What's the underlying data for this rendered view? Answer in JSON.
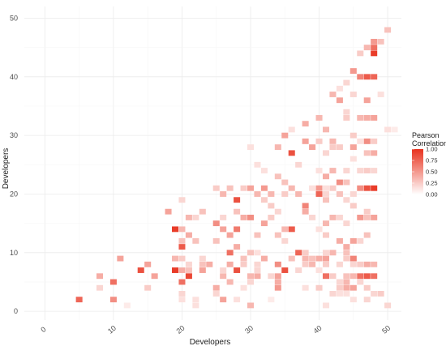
{
  "chart_data": {
    "type": "heatmap",
    "title": "",
    "xlabel": "Developers",
    "ylabel": "Developers",
    "xlim": [
      -3,
      52
    ],
    "ylim": [
      -1.5,
      52
    ],
    "x_ticks": [
      0,
      10,
      20,
      30,
      40,
      50
    ],
    "y_ticks": [
      0,
      10,
      20,
      30,
      40,
      50
    ],
    "grid": true,
    "legend": {
      "title_line1": "Pearson",
      "title_line2": "Correlation",
      "placement": "right",
      "ticks": [
        {
          "value": 1.0,
          "label": "1.00"
        },
        {
          "value": 0.75,
          "label": "0.75"
        },
        {
          "value": 0.5,
          "label": "0.50"
        },
        {
          "value": 0.25,
          "label": "0.25"
        },
        {
          "value": 0.0,
          "label": "0.00"
        }
      ],
      "color_low": "#ffffff",
      "color_high": "#e8321e"
    },
    "cells": [
      [
        5,
        2,
        0.75
      ],
      [
        10,
        5,
        0.7
      ],
      [
        10,
        2,
        0.55
      ],
      [
        11,
        9,
        0.45
      ],
      [
        8,
        6,
        0.4
      ],
      [
        8,
        4,
        0.2
      ],
      [
        12,
        1,
        0.1
      ],
      [
        14,
        7,
        0.85
      ],
      [
        15,
        8,
        0.45
      ],
      [
        16,
        6,
        0.45
      ],
      [
        15,
        4,
        0.25
      ],
      [
        18,
        17,
        0.45
      ],
      [
        19,
        14,
        0.95
      ],
      [
        19,
        7,
        0.95
      ],
      [
        19,
        9,
        0.35
      ],
      [
        20,
        19,
        0.2
      ],
      [
        20,
        14,
        0.35
      ],
      [
        20,
        11,
        0.8
      ],
      [
        20,
        9,
        0.25
      ],
      [
        20,
        7,
        0.4
      ],
      [
        20,
        5,
        0.7
      ],
      [
        20,
        2,
        0.15
      ],
      [
        20,
        3,
        0.2
      ],
      [
        20,
        12,
        0.3
      ],
      [
        21,
        16,
        0.35
      ],
      [
        21,
        13,
        0.4
      ],
      [
        21,
        6,
        0.9
      ],
      [
        21,
        8,
        0.2
      ],
      [
        21,
        7,
        0.3
      ],
      [
        22,
        16,
        0.2
      ],
      [
        22,
        12,
        0.3
      ],
      [
        22,
        2,
        0.15
      ],
      [
        22,
        1,
        0.15
      ],
      [
        23,
        17,
        0.3
      ],
      [
        23,
        7,
        0.45
      ],
      [
        23,
        9,
        0.2
      ],
      [
        23,
        8,
        0.3
      ],
      [
        24,
        8,
        0.4
      ],
      [
        25,
        21,
        0.25
      ],
      [
        25,
        15,
        0.55
      ],
      [
        25,
        12,
        0.3
      ],
      [
        25,
        4,
        0.4
      ],
      [
        25,
        3,
        0.2
      ],
      [
        26,
        20,
        0.35
      ],
      [
        26,
        16,
        0.2
      ],
      [
        26,
        14,
        0.45
      ],
      [
        26,
        7,
        0.2
      ],
      [
        26,
        6,
        0.35
      ],
      [
        26,
        2,
        0.45
      ],
      [
        27,
        21,
        0.3
      ],
      [
        27,
        13,
        0.45
      ],
      [
        27,
        10,
        0.7
      ],
      [
        27,
        8,
        0.4
      ],
      [
        27,
        5,
        0.35
      ],
      [
        28,
        19,
        0.85
      ],
      [
        28,
        17,
        0.3
      ],
      [
        28,
        14,
        0.65
      ],
      [
        28,
        11,
        0.4
      ],
      [
        28,
        7,
        0.85
      ],
      [
        28,
        2,
        0.15
      ],
      [
        29,
        21,
        0.25
      ],
      [
        29,
        16,
        0.4
      ],
      [
        29,
        9,
        0.3
      ],
      [
        29,
        8,
        0.25
      ],
      [
        29,
        4,
        0.15
      ],
      [
        30,
        28,
        0.15
      ],
      [
        30,
        21,
        0.45
      ],
      [
        30,
        16,
        0.55
      ],
      [
        30,
        10,
        0.3
      ],
      [
        30,
        6,
        0.35
      ],
      [
        30,
        5,
        0.2
      ],
      [
        30,
        1,
        0.35
      ],
      [
        31,
        25,
        0.15
      ],
      [
        31,
        20,
        0.35
      ],
      [
        31,
        13,
        0.3
      ],
      [
        31,
        10,
        0.15
      ],
      [
        31,
        8,
        0.2
      ],
      [
        31,
        7,
        0.2
      ],
      [
        31,
        6,
        0.4
      ],
      [
        32,
        24,
        0.15
      ],
      [
        32,
        21,
        0.5
      ],
      [
        32,
        19,
        0.25
      ],
      [
        32,
        15,
        0.45
      ],
      [
        32,
        9,
        0.4
      ],
      [
        33,
        20,
        0.35
      ],
      [
        33,
        18,
        0.25
      ],
      [
        33,
        16,
        0.25
      ],
      [
        33,
        6,
        0.2
      ],
      [
        33,
        2,
        0.1
      ],
      [
        34,
        28,
        0.35
      ],
      [
        34,
        23,
        0.3
      ],
      [
        34,
        17,
        0.2
      ],
      [
        34,
        13,
        0.3
      ],
      [
        34,
        8,
        0.55
      ],
      [
        34,
        6,
        0.45
      ],
      [
        34,
        5,
        0.4
      ],
      [
        34,
        4,
        0.5
      ],
      [
        35,
        30,
        0.45
      ],
      [
        35,
        22,
        0.3
      ],
      [
        35,
        20,
        0.25
      ],
      [
        35,
        14,
        0.35
      ],
      [
        35,
        12,
        0.2
      ],
      [
        35,
        7,
        0.85
      ],
      [
        36,
        31,
        0.15
      ],
      [
        36,
        27,
        0.85
      ],
      [
        36,
        21,
        0.35
      ],
      [
        36,
        14,
        0.8
      ],
      [
        36,
        9,
        0.3
      ],
      [
        37,
        25,
        0.2
      ],
      [
        37,
        20,
        0.35
      ],
      [
        37,
        10,
        0.75
      ],
      [
        37,
        7,
        0.2
      ],
      [
        38,
        32,
        0.4
      ],
      [
        38,
        29,
        0.45
      ],
      [
        38,
        18,
        0.6
      ],
      [
        38,
        17,
        0.4
      ],
      [
        38,
        10,
        0.25
      ],
      [
        38,
        9,
        0.35
      ],
      [
        38,
        8,
        0.25
      ],
      [
        38,
        4,
        0.15
      ],
      [
        39,
        28,
        0.45
      ],
      [
        39,
        21,
        0.15
      ],
      [
        39,
        16,
        0.2
      ],
      [
        39,
        9,
        0.3
      ],
      [
        39,
        8,
        0.35
      ],
      [
        40,
        33,
        0.35
      ],
      [
        40,
        29,
        0.25
      ],
      [
        40,
        24,
        0.15
      ],
      [
        40,
        21,
        0.5
      ],
      [
        40,
        20,
        0.75
      ],
      [
        40,
        14,
        0.15
      ],
      [
        40,
        9,
        0.4
      ],
      [
        40,
        7,
        0.15
      ],
      [
        40,
        4,
        0.25
      ],
      [
        41,
        31,
        0.35
      ],
      [
        41,
        27,
        0.2
      ],
      [
        41,
        23,
        0.4
      ],
      [
        41,
        21,
        0.15
      ],
      [
        41,
        20,
        0.2
      ],
      [
        41,
        19,
        0.3
      ],
      [
        41,
        15,
        0.35
      ],
      [
        41,
        13,
        0.25
      ],
      [
        41,
        10,
        0.2
      ],
      [
        41,
        9,
        0.45
      ],
      [
        41,
        8,
        0.25
      ],
      [
        41,
        6,
        0.7
      ],
      [
        41,
        1,
        0.15
      ],
      [
        42,
        37,
        0.35
      ],
      [
        42,
        29,
        0.35
      ],
      [
        42,
        28,
        0.25
      ],
      [
        42,
        24,
        0.35
      ],
      [
        42,
        21,
        0.25
      ],
      [
        42,
        16,
        0.35
      ],
      [
        42,
        10,
        0.35
      ],
      [
        42,
        6,
        0.25
      ],
      [
        42,
        3,
        0.2
      ],
      [
        43,
        38,
        0.15
      ],
      [
        43,
        36,
        0.45
      ],
      [
        43,
        28,
        0.25
      ],
      [
        43,
        22,
        0.55
      ],
      [
        43,
        20,
        0.3
      ],
      [
        43,
        16,
        0.2
      ],
      [
        43,
        12,
        0.4
      ],
      [
        43,
        8,
        0.2
      ],
      [
        43,
        5,
        0.2
      ],
      [
        43,
        4,
        0.25
      ],
      [
        43,
        3,
        0.15
      ],
      [
        44,
        39,
        0.2
      ],
      [
        44,
        34,
        0.2
      ],
      [
        44,
        33,
        0.25
      ],
      [
        44,
        24,
        0.2
      ],
      [
        44,
        22,
        0.3
      ],
      [
        44,
        19,
        0.2
      ],
      [
        44,
        15,
        0.2
      ],
      [
        44,
        11,
        0.4
      ],
      [
        44,
        10,
        0.3
      ],
      [
        44,
        9,
        0.25
      ],
      [
        44,
        6,
        0.3
      ],
      [
        44,
        5,
        0.35
      ],
      [
        44,
        4,
        0.4
      ],
      [
        44,
        3,
        0.15
      ],
      [
        45,
        41,
        0.5
      ],
      [
        45,
        37,
        0.2
      ],
      [
        45,
        30,
        0.25
      ],
      [
        45,
        28,
        0.45
      ],
      [
        45,
        26,
        0.15
      ],
      [
        45,
        20,
        0.2
      ],
      [
        45,
        18,
        0.25
      ],
      [
        45,
        12,
        0.45
      ],
      [
        45,
        9,
        0.6
      ],
      [
        45,
        8,
        0.2
      ],
      [
        45,
        6,
        0.35
      ],
      [
        45,
        4,
        0.45
      ],
      [
        45,
        2,
        0.15
      ],
      [
        46,
        44,
        0.25
      ],
      [
        46,
        40,
        0.6
      ],
      [
        46,
        33,
        0.35
      ],
      [
        46,
        29,
        0.15
      ],
      [
        46,
        24,
        0.2
      ],
      [
        46,
        21,
        0.55
      ],
      [
        46,
        16,
        0.5
      ],
      [
        46,
        12,
        0.2
      ],
      [
        46,
        8,
        0.25
      ],
      [
        46,
        6,
        0.7
      ],
      [
        46,
        5,
        0.2
      ],
      [
        47,
        45,
        0.35
      ],
      [
        47,
        40,
        0.8
      ],
      [
        47,
        36,
        0.45
      ],
      [
        47,
        33,
        0.4
      ],
      [
        47,
        29,
        0.55
      ],
      [
        47,
        27,
        0.3
      ],
      [
        47,
        24,
        0.25
      ],
      [
        47,
        21,
        0.85
      ],
      [
        47,
        17,
        0.25
      ],
      [
        47,
        16,
        0.3
      ],
      [
        47,
        13,
        0.3
      ],
      [
        47,
        8,
        0.4
      ],
      [
        47,
        6,
        0.8
      ],
      [
        47,
        4,
        0.25
      ],
      [
        47,
        2,
        0.2
      ],
      [
        48,
        46,
        0.5
      ],
      [
        48,
        45,
        0.7
      ],
      [
        48,
        44,
        0.95
      ],
      [
        48,
        40,
        0.75
      ],
      [
        48,
        33,
        0.45
      ],
      [
        48,
        29,
        0.25
      ],
      [
        48,
        27,
        0.4
      ],
      [
        48,
        24,
        0.2
      ],
      [
        48,
        21,
        0.95
      ],
      [
        48,
        16,
        0.45
      ],
      [
        48,
        8,
        0.35
      ],
      [
        48,
        6,
        0.7
      ],
      [
        48,
        3,
        0.2
      ],
      [
        49,
        46,
        0.3
      ],
      [
        49,
        37,
        0.15
      ],
      [
        49,
        3,
        0.25
      ],
      [
        50,
        48,
        0.3
      ],
      [
        50,
        31,
        0.15
      ],
      [
        50,
        1,
        0.2
      ],
      [
        51,
        31,
        0.1
      ]
    ]
  }
}
